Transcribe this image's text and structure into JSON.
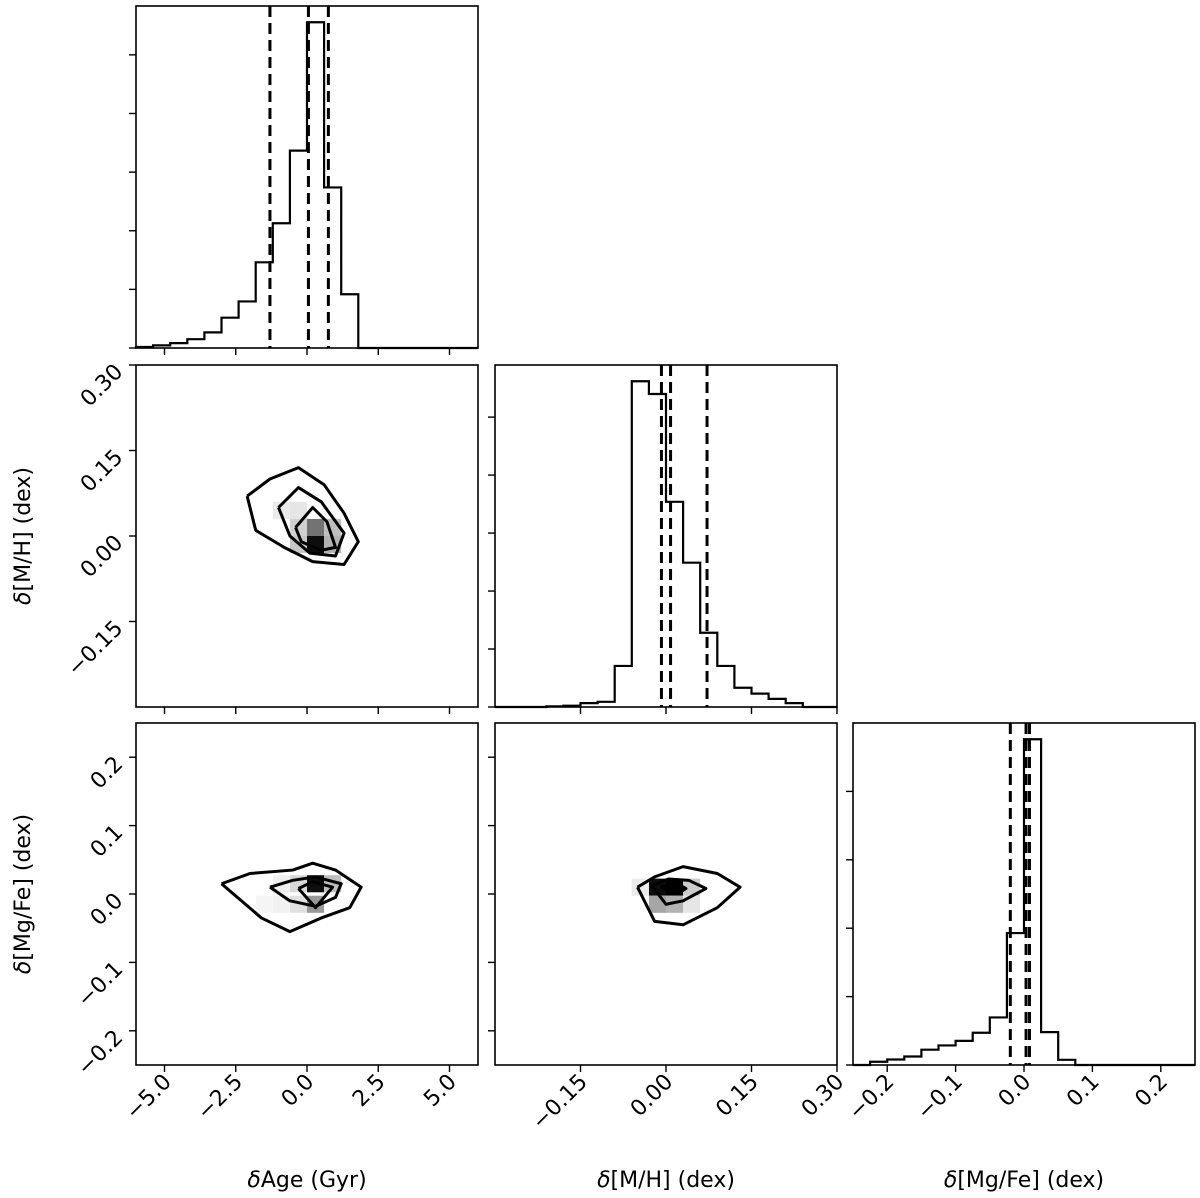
{
  "chart_data": {
    "type": "corner",
    "parameters": [
      {
        "key": "age",
        "label_italic": "δ",
        "label_rest": "Age (Gyr)",
        "range": [
          -6.0,
          6.0
        ],
        "ticks": [
          -5.0,
          -2.5,
          0.0,
          2.5,
          5.0
        ],
        "tick_labels": [
          "−5.0",
          "−2.5",
          "0.0",
          "2.5",
          "5.0"
        ]
      },
      {
        "key": "mh",
        "label_italic": "δ",
        "label_rest": "[M/H] (dex)",
        "range": [
          -0.3,
          0.3
        ],
        "ticks": [
          -0.15,
          0.0,
          0.15,
          0.3
        ],
        "tick_labels": [
          "−0.15",
          "0.00",
          "0.15",
          "0.30"
        ]
      },
      {
        "key": "mgfe",
        "label_italic": "δ",
        "label_rest": "[Mg/Fe] (dex)",
        "range": [
          -0.25,
          0.25
        ],
        "ticks": [
          -0.2,
          -0.1,
          0.0,
          0.1,
          0.2
        ],
        "tick_labels": [
          "−0.2",
          "−0.1",
          "0.0",
          "0.1",
          "0.2"
        ]
      }
    ],
    "histograms": [
      {
        "param": "age",
        "bin_edges": [
          -6.0,
          -5.4,
          -4.8,
          -4.2,
          -3.6,
          -3.0,
          -2.4,
          -1.8,
          -1.2,
          -0.6,
          0.0,
          0.6,
          1.2,
          1.8,
          2.4,
          3.0,
          3.6,
          4.2,
          4.8,
          5.4,
          6.0
        ],
        "counts": [
          0.3,
          0.8,
          1.5,
          2.7,
          4.8,
          9.3,
          14.3,
          26.3,
          38.3,
          60.6,
          100.0,
          49.3,
          16.5,
          0.0,
          0.0,
          0.0,
          0.0,
          0.0,
          0.0,
          0.0
        ],
        "ymax": 105,
        "yticks": [
          0,
          18,
          36,
          54,
          72,
          90
        ],
        "quantiles": [
          -1.3,
          0.05,
          0.75
        ]
      },
      {
        "param": "mh",
        "bin_edges": [
          -0.3,
          -0.27,
          -0.24,
          -0.21,
          -0.18,
          -0.15,
          -0.12,
          -0.09,
          -0.06,
          -0.03,
          0.0,
          0.03,
          0.06,
          0.09,
          0.12,
          0.15,
          0.18,
          0.21,
          0.24,
          0.27,
          0.3
        ],
        "counts": [
          0.0,
          0.0,
          0.0,
          0.2,
          0.4,
          1.2,
          1.6,
          12.6,
          100.0,
          96.1,
          63.0,
          44.3,
          22.8,
          12.6,
          5.9,
          4.1,
          2.5,
          1.2,
          0.0,
          0.0
        ],
        "ymax": 105,
        "yticks": [
          0,
          17.8,
          35.6,
          53.4,
          71.2,
          89.0
        ],
        "quantiles": [
          -0.008,
          0.008,
          0.072
        ]
      },
      {
        "param": "mgfe",
        "bin_edges": [
          -0.25,
          -0.225,
          -0.2,
          -0.175,
          -0.15,
          -0.125,
          -0.1,
          -0.075,
          -0.05,
          -0.025,
          0.0,
          0.025,
          0.05,
          0.075,
          0.1,
          0.125,
          0.15,
          0.175,
          0.2,
          0.225,
          0.25
        ],
        "counts": [
          0.0,
          1.0,
          1.7,
          2.6,
          4.7,
          6.0,
          7.4,
          9.9,
          14.6,
          40.5,
          100.0,
          10.1,
          1.6,
          0.0,
          0.0,
          0.0,
          0.0,
          0.0,
          0.0,
          0.0
        ],
        "ymax": 105,
        "yticks": [
          0,
          21,
          42,
          63,
          84
        ],
        "quantiles": [
          -0.02,
          0.003,
          0.008
        ]
      }
    ],
    "contour_panels": [
      {
        "x": "age",
        "y": "mh",
        "pixels": [
          {
            "x": -0.9,
            "y": 0.045,
            "level": 0.08
          },
          {
            "x": -0.3,
            "y": 0.045,
            "level": 0.1
          },
          {
            "x": -0.3,
            "y": 0.015,
            "level": 0.18
          },
          {
            "x": 0.3,
            "y": 0.015,
            "level": 0.55
          },
          {
            "x": 0.3,
            "y": -0.015,
            "level": 0.95
          },
          {
            "x": 0.9,
            "y": 0.015,
            "level": 0.25
          },
          {
            "x": 0.9,
            "y": -0.015,
            "level": 0.3
          },
          {
            "x": -0.3,
            "y": -0.015,
            "level": 0.22
          }
        ],
        "contours": [
          [
            [
              -2.1,
              0.07
            ],
            [
              -1.3,
              0.1
            ],
            [
              -0.3,
              0.12
            ],
            [
              0.6,
              0.09
            ],
            [
              1.3,
              0.04
            ],
            [
              1.8,
              -0.01
            ],
            [
              1.3,
              -0.05
            ],
            [
              0.2,
              -0.045
            ],
            [
              -0.8,
              -0.02
            ],
            [
              -1.8,
              0.01
            ],
            [
              -2.1,
              0.07
            ]
          ],
          [
            [
              -1.0,
              0.05
            ],
            [
              -0.3,
              0.085
            ],
            [
              0.5,
              0.06
            ],
            [
              1.3,
              0.005
            ],
            [
              1.0,
              -0.035
            ],
            [
              0.1,
              -0.03
            ],
            [
              -0.6,
              0.0
            ],
            [
              -1.0,
              0.05
            ]
          ],
          [
            [
              -0.4,
              0.015
            ],
            [
              0.2,
              0.05
            ],
            [
              0.7,
              0.025
            ],
            [
              1.0,
              -0.02
            ],
            [
              0.5,
              -0.025
            ],
            [
              -0.2,
              -0.01
            ],
            [
              -0.4,
              0.015
            ]
          ]
        ]
      },
      {
        "x": "age",
        "y": "mgfe",
        "pixels": [
          {
            "x": -0.3,
            "y": 0.015,
            "level": 0.15
          },
          {
            "x": 0.3,
            "y": 0.015,
            "level": 0.95
          },
          {
            "x": 0.3,
            "y": -0.015,
            "level": 0.4
          },
          {
            "x": -0.3,
            "y": -0.015,
            "level": 0.12
          },
          {
            "x": 0.9,
            "y": 0.015,
            "level": 0.25
          },
          {
            "x": -0.9,
            "y": 0.015,
            "level": 0.06
          },
          {
            "x": -0.9,
            "y": -0.015,
            "level": 0.05
          },
          {
            "x": -1.5,
            "y": -0.015,
            "level": 0.04
          }
        ],
        "contours": [
          [
            [
              -3.0,
              0.015
            ],
            [
              -2.0,
              0.03
            ],
            [
              -0.5,
              0.035
            ],
            [
              0.2,
              0.045
            ],
            [
              1.0,
              0.035
            ],
            [
              1.9,
              0.01
            ],
            [
              1.5,
              -0.02
            ],
            [
              0.5,
              -0.035
            ],
            [
              -0.6,
              -0.055
            ],
            [
              -1.6,
              -0.035
            ],
            [
              -3.0,
              0.015
            ]
          ],
          [
            [
              -1.3,
              0.01
            ],
            [
              -0.5,
              0.02
            ],
            [
              0.3,
              0.025
            ],
            [
              1.2,
              0.015
            ],
            [
              1.0,
              -0.005
            ],
            [
              0.3,
              -0.018
            ],
            [
              -0.6,
              -0.01
            ],
            [
              -1.3,
              0.01
            ]
          ],
          [
            [
              -0.3,
              0.008
            ],
            [
              0.2,
              0.018
            ],
            [
              0.9,
              0.01
            ],
            [
              0.3,
              -0.02
            ],
            [
              -0.3,
              0.008
            ]
          ]
        ]
      },
      {
        "x": "mh",
        "y": "mgfe",
        "pixels": [
          {
            "x": -0.015,
            "y": 0.01,
            "level": 0.95
          },
          {
            "x": 0.015,
            "y": 0.01,
            "level": 1.0
          },
          {
            "x": 0.015,
            "y": -0.015,
            "level": 0.3
          },
          {
            "x": -0.015,
            "y": -0.015,
            "level": 0.35
          },
          {
            "x": 0.045,
            "y": 0.01,
            "level": 0.2
          },
          {
            "x": -0.045,
            "y": 0.01,
            "level": 0.08
          },
          {
            "x": 0.045,
            "y": -0.015,
            "level": 0.1
          }
        ],
        "contours": [
          [
            [
              -0.05,
              0.01
            ],
            [
              -0.02,
              0.025
            ],
            [
              0.03,
              0.04
            ],
            [
              0.09,
              0.03
            ],
            [
              0.13,
              0.01
            ],
            [
              0.09,
              -0.02
            ],
            [
              0.03,
              -0.045
            ],
            [
              -0.02,
              -0.04
            ],
            [
              -0.05,
              0.01
            ]
          ],
          [
            [
              -0.025,
              0.012
            ],
            [
              0.005,
              0.022
            ],
            [
              0.04,
              0.02
            ],
            [
              0.07,
              0.008
            ],
            [
              0.03,
              -0.01
            ],
            [
              0.0,
              -0.015
            ],
            [
              -0.025,
              0.012
            ]
          ],
          [
            [
              -0.01,
              0.01
            ],
            [
              0.02,
              0.015
            ],
            [
              0.035,
              0.008
            ],
            [
              0.02,
              0.0
            ],
            [
              -0.01,
              0.01
            ]
          ]
        ]
      }
    ]
  }
}
